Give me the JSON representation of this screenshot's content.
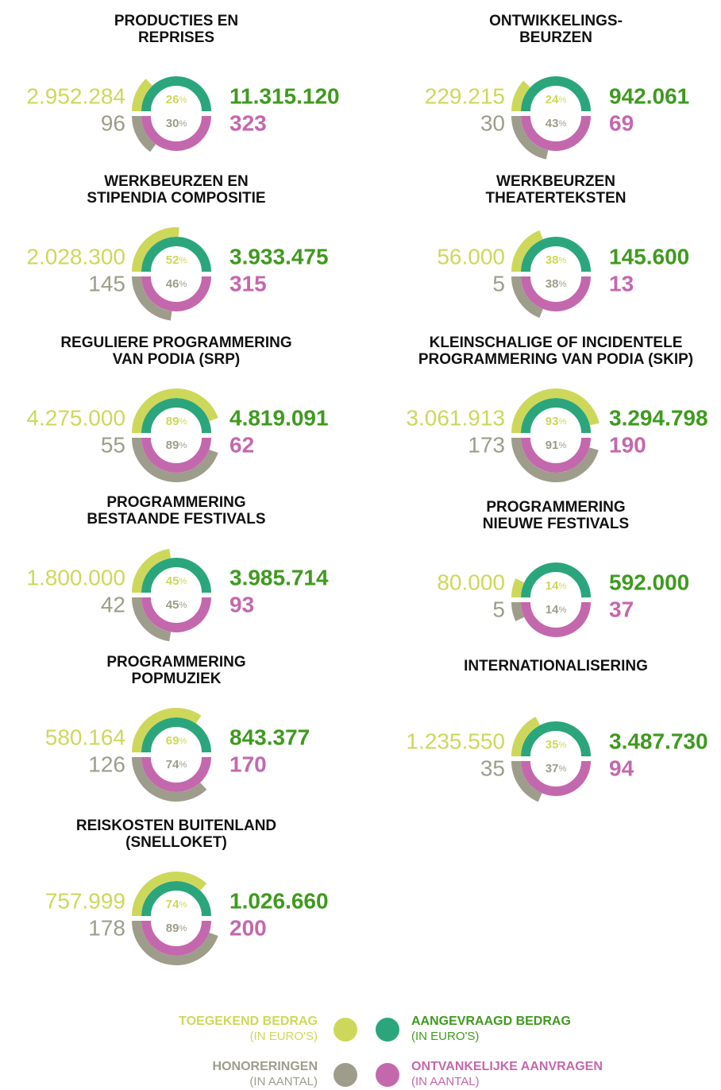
{
  "legend": {
    "items": [
      {
        "name": "TOEGEKEND BEDRAG",
        "sub": "(IN EURO'S)",
        "color": "#cdd85a"
      },
      {
        "name": "AANGEVRAAGD BEDRAG",
        "sub": "(IN EURO'S)",
        "color": "#2ba67c"
      },
      {
        "name": "HONORERINGEN",
        "sub": "(IN AANTAL)",
        "color": "#9e9d8b"
      },
      {
        "name": "ONTVANKELIJKE AANVRAGEN",
        "sub": "(IN AANTAL)",
        "color": "#c468ad"
      }
    ],
    "amount_text_color": "#3f9a1f"
  },
  "percent_sign": "%",
  "chart_data": [
    {
      "type": "gauge",
      "title": [
        "PRODUCTIES EN",
        "REPRISES"
      ],
      "amounts": {
        "values": [
          2952284,
          11315120
        ],
        "value_labels": [
          "2.952.284",
          "11.315.120"
        ]
      },
      "counts": {
        "values": [
          96,
          323
        ]
      },
      "percents": {
        "values": [
          26,
          30
        ]
      }
    },
    {
      "type": "gauge",
      "title": [
        "ONTWIKKELINGS-",
        "BEURZEN"
      ],
      "amounts": {
        "values": [
          229215,
          942061
        ],
        "value_labels": [
          "229.215",
          "942.061"
        ]
      },
      "counts": {
        "values": [
          30,
          69
        ]
      },
      "percents": {
        "values": [
          24,
          43
        ]
      }
    },
    {
      "type": "gauge",
      "title": [
        "WERKBEURZEN EN",
        "STIPENDIA COMPOSITIE"
      ],
      "amounts": {
        "values": [
          2028300,
          3933475
        ],
        "value_labels": [
          "2.028.300",
          "3.933.475"
        ]
      },
      "counts": {
        "values": [
          145,
          315
        ]
      },
      "percents": {
        "values": [
          52,
          46
        ]
      }
    },
    {
      "type": "gauge",
      "title": [
        "WERKBEURZEN",
        "THEATERTEKSTEN"
      ],
      "amounts": {
        "values": [
          56000,
          145600
        ],
        "value_labels": [
          "56.000",
          "145.600"
        ]
      },
      "counts": {
        "values": [
          5,
          13
        ]
      },
      "percents": {
        "values": [
          38,
          38
        ]
      }
    },
    {
      "type": "gauge",
      "title": [
        "REGULIERE PROGRAMMERING",
        "VAN PODIA (SRP)"
      ],
      "amounts": {
        "values": [
          4275000,
          4819091
        ],
        "value_labels": [
          "4.275.000",
          "4.819.091"
        ]
      },
      "counts": {
        "values": [
          55,
          62
        ]
      },
      "percents": {
        "values": [
          89,
          89
        ]
      }
    },
    {
      "type": "gauge",
      "title": [
        "KLEINSCHALIGE OF INCIDENTELE",
        "PROGRAMMERING VAN PODIA (SKIP)"
      ],
      "amounts": {
        "values": [
          3061913,
          3294798
        ],
        "value_labels": [
          "3.061.913",
          "3.294.798"
        ]
      },
      "counts": {
        "values": [
          173,
          190
        ]
      },
      "percents": {
        "values": [
          93,
          91
        ]
      }
    },
    {
      "type": "gauge",
      "title": [
        "PROGRAMMERING",
        "BESTAANDE FESTIVALS"
      ],
      "amounts": {
        "values": [
          1800000,
          3985714
        ],
        "value_labels": [
          "1.800.000",
          "3.985.714"
        ]
      },
      "counts": {
        "values": [
          42,
          93
        ]
      },
      "percents": {
        "values": [
          45,
          45
        ]
      }
    },
    {
      "type": "gauge",
      "title": [
        "PROGRAMMERING",
        "NIEUWE FESTIVALS"
      ],
      "amounts": {
        "values": [
          80000,
          592000
        ],
        "value_labels": [
          "80.000",
          "592.000"
        ]
      },
      "counts": {
        "values": [
          5,
          37
        ]
      },
      "percents": {
        "values": [
          14,
          14
        ]
      }
    },
    {
      "type": "gauge",
      "title": [
        "PROGRAMMERING",
        "POPMUZIEK"
      ],
      "amounts": {
        "values": [
          580164,
          843377
        ],
        "value_labels": [
          "580.164",
          "843.377"
        ]
      },
      "counts": {
        "values": [
          126,
          170
        ]
      },
      "percents": {
        "values": [
          69,
          74
        ]
      }
    },
    {
      "type": "gauge",
      "title": [
        "INTERNATIONALISERING"
      ],
      "amounts": {
        "values": [
          1235550,
          3487730
        ],
        "value_labels": [
          "1.235.550",
          "3.487.730"
        ]
      },
      "counts": {
        "values": [
          35,
          94
        ]
      },
      "percents": {
        "values": [
          35,
          37
        ]
      }
    },
    {
      "type": "gauge",
      "title": [
        "REISKOSTEN BUITENLAND",
        "(SNELLOKET)"
      ],
      "amounts": {
        "values": [
          757999,
          1026660
        ],
        "value_labels": [
          "757.999",
          "1.026.660"
        ]
      },
      "counts": {
        "values": [
          178,
          200
        ]
      },
      "percents": {
        "values": [
          74,
          89
        ]
      }
    }
  ]
}
